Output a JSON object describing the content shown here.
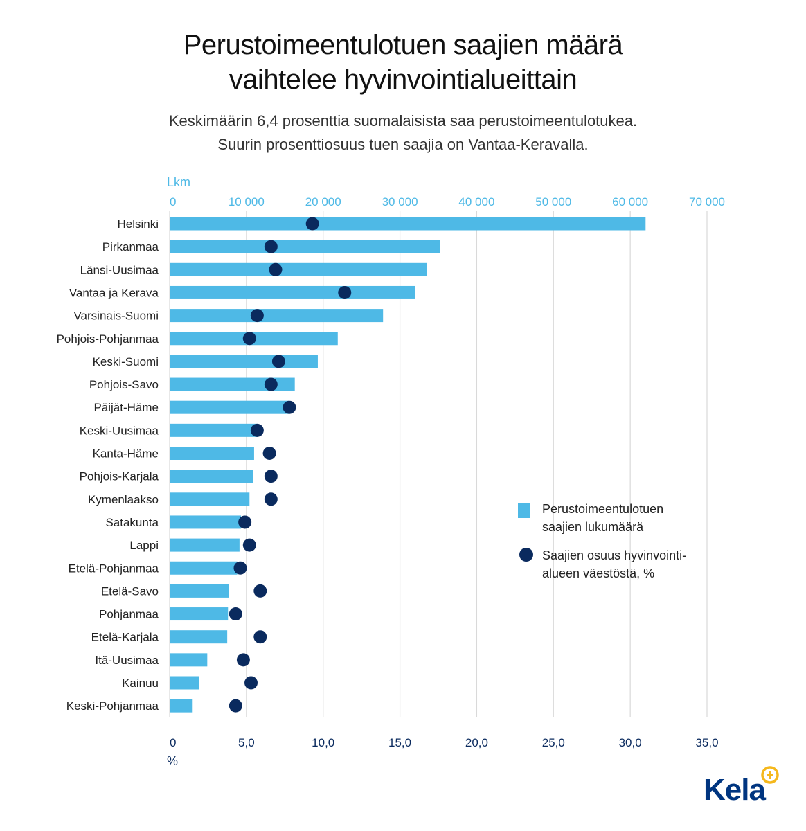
{
  "title_lines": [
    "Perustoimeentulotuen saajien määrä",
    "vaihtelee hyvinvointialueittain"
  ],
  "subtitle_lines": [
    "Keskimäärin 6,4 prosenttia suomalaisista saa perustoimeentulotukea.",
    "Suurin prosenttiosuus tuen saajia on Vantaa-Keravalla."
  ],
  "logo": {
    "text": "Kela",
    "mark_icon": "kela-logo-mark-icon"
  },
  "colors": {
    "bar": "#4eb9e6",
    "dot": "#0a2a5e",
    "top_axis_text": "#4eb9e6",
    "bottom_axis_text": "#0a2a5e",
    "grid": "#d9d9d9",
    "label": "#222222"
  },
  "chart_data": {
    "type": "bar",
    "orientation": "horizontal",
    "categories": [
      "Helsinki",
      "Pirkanmaa",
      "Länsi-Uusimaa",
      "Vantaa ja Kerava",
      "Varsinais-Suomi",
      "Pohjois-Pohjanmaa",
      "Keski-Suomi",
      "Pohjois-Savo",
      "Päijät-Häme",
      "Keski-Uusimaa",
      "Kanta-Häme",
      "Pohjois-Karjala",
      "Kymenlaakso",
      "Satakunta",
      "Lappi",
      "Etelä-Pohjanmaa",
      "Etelä-Savo",
      "Pohjanmaa",
      "Etelä-Karjala",
      "Itä-Uusimaa",
      "Kainuu",
      "Keski-Pohjanmaa"
    ],
    "series": [
      {
        "name": "Perustoimeentulotuen saajien lukumäärä",
        "axis": "top",
        "marker": "bar",
        "values": [
          62000,
          35200,
          33500,
          32000,
          27800,
          21900,
          19300,
          16300,
          15600,
          11500,
          11000,
          10900,
          10400,
          9300,
          9100,
          8800,
          7700,
          7600,
          7500,
          4900,
          3800,
          3000
        ]
      },
      {
        "name": "Saajien osuus hyvinvointi- alueen väestöstä, %",
        "axis": "bottom",
        "marker": "dot",
        "values": [
          9.3,
          6.6,
          6.9,
          11.4,
          5.7,
          5.2,
          7.1,
          6.6,
          7.8,
          5.7,
          6.5,
          6.6,
          6.6,
          4.9,
          5.2,
          4.6,
          5.9,
          4.3,
          5.9,
          4.8,
          5.3,
          4.3
        ]
      }
    ],
    "x_top": {
      "label": "Lkm",
      "min": 0,
      "max": 70000,
      "tick_labels": [
        "0",
        "10 000",
        "20 000",
        "30 000",
        "40 000",
        "50 000",
        "60 000",
        "70 000"
      ]
    },
    "x_bottom": {
      "label": "%",
      "min": 0,
      "max": 35,
      "tick_labels": [
        "0",
        "5,0",
        "10,0",
        "15,0",
        "20,0",
        "25,0",
        "30,0",
        "35,0"
      ]
    },
    "grid": "vertical",
    "legend": {
      "position": "right-middle",
      "items": [
        {
          "marker": "bar",
          "lines": [
            "Perustoimeentulotuen",
            "saajien lukumäärä"
          ]
        },
        {
          "marker": "dot",
          "lines": [
            "Saajien osuus hyvinvointi-",
            "alueen väestöstä, %"
          ]
        }
      ]
    }
  }
}
